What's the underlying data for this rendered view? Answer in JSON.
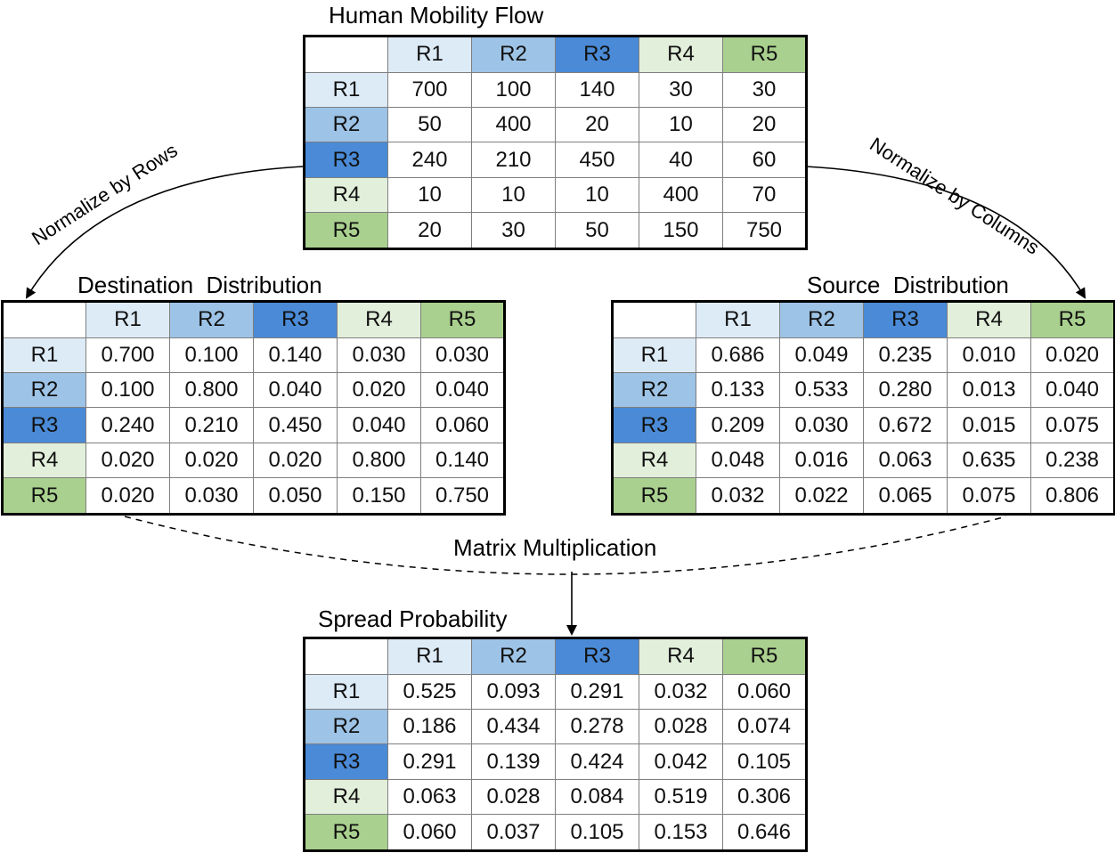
{
  "region_colors": {
    "R1": "#ddebf7",
    "R2": "#9dc3e6",
    "R3": "#4a8ad6",
    "R4": "#e2efda",
    "R5": "#a9d08e"
  },
  "labels": {
    "normalize_rows": "Normalize by Rows",
    "normalize_columns": "Normalize by Columns",
    "matrix_multiplication": "Matrix Multiplication"
  },
  "matrices": [
    {
      "id": "flow",
      "title": "Human Mobility Flow",
      "headers": [
        "R1",
        "R2",
        "R3",
        "R4",
        "R5"
      ],
      "rows": [
        {
          "label": "R1",
          "values": [
            "700",
            "100",
            "140",
            "30",
            "30"
          ]
        },
        {
          "label": "R2",
          "values": [
            "50",
            "400",
            "20",
            "10",
            "20"
          ]
        },
        {
          "label": "R3",
          "values": [
            "240",
            "210",
            "450",
            "40",
            "60"
          ]
        },
        {
          "label": "R4",
          "values": [
            "10",
            "10",
            "10",
            "400",
            "70"
          ]
        },
        {
          "label": "R5",
          "values": [
            "20",
            "30",
            "50",
            "150",
            "750"
          ]
        }
      ]
    },
    {
      "id": "destination",
      "title": "Destination  Distribution",
      "headers": [
        "R1",
        "R2",
        "R3",
        "R4",
        "R5"
      ],
      "rows": [
        {
          "label": "R1",
          "values": [
            "0.700",
            "0.100",
            "0.140",
            "0.030",
            "0.030"
          ]
        },
        {
          "label": "R2",
          "values": [
            "0.100",
            "0.800",
            "0.040",
            "0.020",
            "0.040"
          ]
        },
        {
          "label": "R3",
          "values": [
            "0.240",
            "0.210",
            "0.450",
            "0.040",
            "0.060"
          ]
        },
        {
          "label": "R4",
          "values": [
            "0.020",
            "0.020",
            "0.020",
            "0.800",
            "0.140"
          ]
        },
        {
          "label": "R5",
          "values": [
            "0.020",
            "0.030",
            "0.050",
            "0.150",
            "0.750"
          ]
        }
      ]
    },
    {
      "id": "source",
      "title": "Source  Distribution",
      "headers": [
        "R1",
        "R2",
        "R3",
        "R4",
        "R5"
      ],
      "rows": [
        {
          "label": "R1",
          "values": [
            "0.686",
            "0.049",
            "0.235",
            "0.010",
            "0.020"
          ]
        },
        {
          "label": "R2",
          "values": [
            "0.133",
            "0.533",
            "0.280",
            "0.013",
            "0.040"
          ]
        },
        {
          "label": "R3",
          "values": [
            "0.209",
            "0.030",
            "0.672",
            "0.015",
            "0.075"
          ]
        },
        {
          "label": "R4",
          "values": [
            "0.048",
            "0.016",
            "0.063",
            "0.635",
            "0.238"
          ]
        },
        {
          "label": "R5",
          "values": [
            "0.032",
            "0.022",
            "0.065",
            "0.075",
            "0.806"
          ]
        }
      ]
    },
    {
      "id": "spread",
      "title": "Spread Probability",
      "headers": [
        "R1",
        "R2",
        "R3",
        "R4",
        "R5"
      ],
      "rows": [
        {
          "label": "R1",
          "values": [
            "0.525",
            "0.093",
            "0.291",
            "0.032",
            "0.060"
          ]
        },
        {
          "label": "R2",
          "values": [
            "0.186",
            "0.434",
            "0.278",
            "0.028",
            "0.074"
          ]
        },
        {
          "label": "R3",
          "values": [
            "0.291",
            "0.139",
            "0.424",
            "0.042",
            "0.105"
          ]
        },
        {
          "label": "R4",
          "values": [
            "0.063",
            "0.028",
            "0.084",
            "0.519",
            "0.306"
          ]
        },
        {
          "label": "R5",
          "values": [
            "0.060",
            "0.037",
            "0.105",
            "0.153",
            "0.646"
          ]
        }
      ]
    }
  ]
}
